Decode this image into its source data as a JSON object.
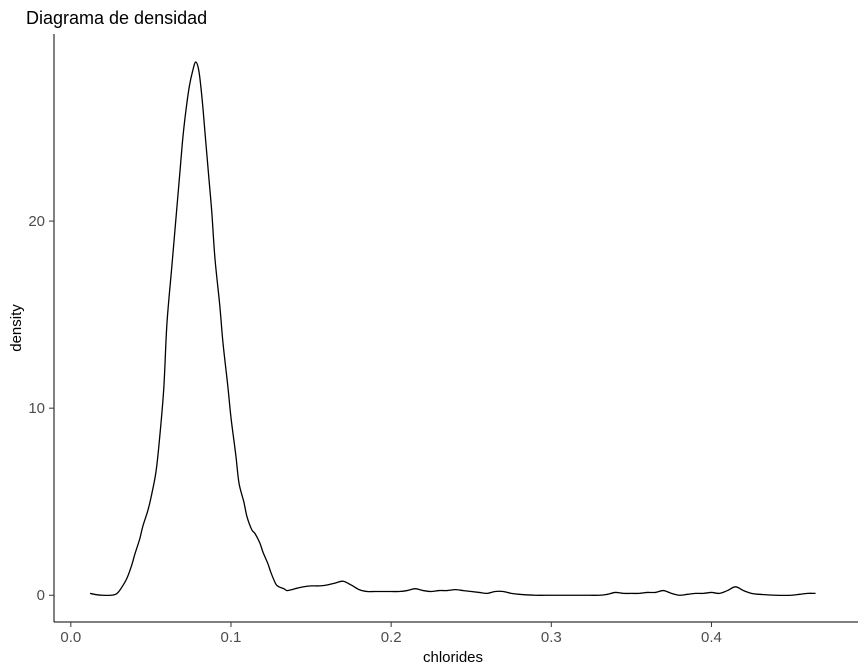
{
  "chart_data": {
    "type": "line",
    "title": "Diagrama de densidad",
    "xlabel": "chlorides",
    "ylabel": "density",
    "xlim": [
      -0.0105,
      0.4915
    ],
    "ylim": [
      -1.43,
      30.0
    ],
    "x_ticks": [
      0.0,
      0.1,
      0.2,
      0.3,
      0.4
    ],
    "x_tick_labels": [
      "0.0",
      "0.1",
      "0.2",
      "0.3",
      "0.4"
    ],
    "y_ticks": [
      0,
      10,
      20
    ],
    "y_tick_labels": [
      "0",
      "10",
      "20"
    ],
    "grid": false,
    "legend": "none",
    "line_color": "#000000",
    "series": [
      {
        "x": [
          0.012,
          0.016,
          0.02,
          0.025,
          0.028,
          0.03,
          0.032,
          0.035,
          0.038,
          0.04,
          0.043,
          0.045,
          0.048,
          0.05,
          0.053,
          0.055,
          0.058,
          0.06,
          0.063,
          0.065,
          0.068,
          0.07,
          0.072,
          0.074,
          0.076,
          0.078,
          0.08,
          0.082,
          0.084,
          0.086,
          0.088,
          0.09,
          0.093,
          0.095,
          0.098,
          0.1,
          0.103,
          0.105,
          0.108,
          0.11,
          0.113,
          0.115,
          0.118,
          0.12,
          0.123,
          0.125,
          0.128,
          0.13,
          0.133,
          0.135,
          0.138,
          0.14,
          0.145,
          0.15,
          0.155,
          0.16,
          0.165,
          0.17,
          0.175,
          0.18,
          0.185,
          0.19,
          0.195,
          0.2,
          0.205,
          0.21,
          0.215,
          0.22,
          0.225,
          0.23,
          0.235,
          0.24,
          0.245,
          0.25,
          0.255,
          0.26,
          0.265,
          0.27,
          0.275,
          0.28,
          0.29,
          0.3,
          0.31,
          0.32,
          0.33,
          0.335,
          0.34,
          0.345,
          0.35,
          0.355,
          0.36,
          0.365,
          0.37,
          0.375,
          0.38,
          0.385,
          0.39,
          0.395,
          0.4,
          0.405,
          0.41,
          0.415,
          0.42,
          0.425,
          0.43,
          0.44,
          0.45,
          0.455,
          0.46,
          0.465
        ],
        "y": [
          0.1,
          0.03,
          0.0,
          0.0,
          0.05,
          0.2,
          0.45,
          0.9,
          1.6,
          2.2,
          3.0,
          3.7,
          4.5,
          5.2,
          6.5,
          8.0,
          11.0,
          14.5,
          17.5,
          19.5,
          22.5,
          24.5,
          26.0,
          27.2,
          28.0,
          28.5,
          28.0,
          26.5,
          24.5,
          22.5,
          20.5,
          18.0,
          15.5,
          13.5,
          11.2,
          9.5,
          7.5,
          6.0,
          5.0,
          4.2,
          3.5,
          3.3,
          2.8,
          2.3,
          1.7,
          1.2,
          0.6,
          0.45,
          0.35,
          0.25,
          0.3,
          0.35,
          0.45,
          0.5,
          0.5,
          0.55,
          0.65,
          0.75,
          0.55,
          0.3,
          0.2,
          0.2,
          0.2,
          0.2,
          0.2,
          0.25,
          0.35,
          0.25,
          0.2,
          0.25,
          0.25,
          0.3,
          0.25,
          0.2,
          0.15,
          0.1,
          0.2,
          0.2,
          0.1,
          0.05,
          0.0,
          0.0,
          0.0,
          0.0,
          0.0,
          0.05,
          0.15,
          0.1,
          0.1,
          0.1,
          0.15,
          0.15,
          0.25,
          0.1,
          0.0,
          0.05,
          0.1,
          0.1,
          0.15,
          0.1,
          0.25,
          0.45,
          0.25,
          0.1,
          0.05,
          0.0,
          0.0,
          0.05,
          0.1,
          0.1
        ]
      }
    ]
  }
}
